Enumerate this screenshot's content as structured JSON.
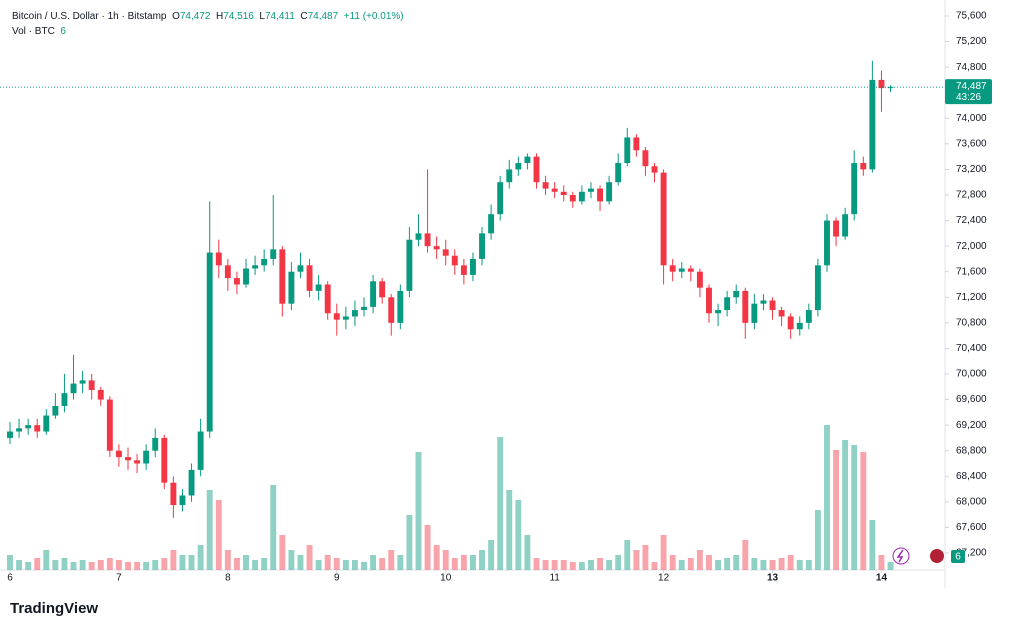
{
  "header": {
    "symbol": "Bitcoin / U.S. Dollar · 1h · Bitstamp",
    "o_label": "O",
    "o": "74,472",
    "h_label": "H",
    "h": "74,516",
    "l_label": "L",
    "l": "74,411",
    "c_label": "C",
    "c": "74,487",
    "change": "+11 (+0.01%)",
    "vol_label": "Vol · BTC",
    "vol": "6"
  },
  "brand": "TradingView",
  "badge": "6",
  "chart_data": {
    "type": "candlestick",
    "up_color": "#089981",
    "down_color": "#f23645",
    "grid": false,
    "last_price_label": "74,487",
    "countdown": "43:26",
    "xlim": [
      -2.2,
      206
    ],
    "xticks": [
      {
        "value": 0,
        "label": "6"
      },
      {
        "value": 24,
        "label": "7"
      },
      {
        "value": 48,
        "label": "8"
      },
      {
        "value": 72,
        "label": "9"
      },
      {
        "value": 96,
        "label": "10"
      },
      {
        "value": 120,
        "label": "11"
      },
      {
        "value": 144,
        "label": "12"
      },
      {
        "value": 168,
        "label": "13"
      },
      {
        "value": 192,
        "label": "14"
      }
    ],
    "ylim": [
      66934,
      75850
    ],
    "yticks": [
      {
        "value": 67200,
        "label": "67,200"
      },
      {
        "value": 67600,
        "label": "67,600"
      },
      {
        "value": 68000,
        "label": "68,000"
      },
      {
        "value": 68400,
        "label": "68,400"
      },
      {
        "value": 68800,
        "label": "68,800"
      },
      {
        "value": 69200,
        "label": "69,200"
      },
      {
        "value": 69600,
        "label": "69,600"
      },
      {
        "value": 70000,
        "label": "70,000"
      },
      {
        "value": 70400,
        "label": "70,400"
      },
      {
        "value": 70800,
        "label": "70,800"
      },
      {
        "value": 71200,
        "label": "71,200"
      },
      {
        "value": 71600,
        "label": "71,600"
      },
      {
        "value": 72000,
        "label": "72,000"
      },
      {
        "value": 72400,
        "label": "72,400"
      },
      {
        "value": 72800,
        "label": "72,800"
      },
      {
        "value": 73200,
        "label": "73,200"
      },
      {
        "value": 73600,
        "label": "73,600"
      },
      {
        "value": 74000,
        "label": "74,000"
      },
      {
        "value": 74400,
        "label": "74,400"
      },
      {
        "value": 74800,
        "label": "74,800"
      },
      {
        "value": 75200,
        "label": "75,200"
      },
      {
        "value": 75600,
        "label": "75,600"
      }
    ],
    "x": [
      0,
      2,
      4,
      6,
      8,
      10,
      12,
      14,
      16,
      18,
      20,
      22,
      24,
      26,
      28,
      30,
      32,
      34,
      36,
      38,
      40,
      42,
      44,
      46,
      48,
      50,
      52,
      54,
      56,
      58,
      60,
      62,
      64,
      66,
      68,
      70,
      72,
      74,
      76,
      78,
      80,
      82,
      84,
      86,
      88,
      90,
      92,
      94,
      96,
      98,
      100,
      102,
      104,
      106,
      108,
      110,
      112,
      114,
      116,
      118,
      120,
      122,
      124,
      126,
      128,
      130,
      132,
      134,
      136,
      138,
      140,
      142,
      144,
      146,
      148,
      150,
      152,
      154,
      156,
      158,
      160,
      162,
      164,
      166,
      168,
      170,
      172,
      174,
      176,
      178,
      180,
      182,
      184,
      186,
      188,
      190,
      192,
      194
    ],
    "open": [
      69000,
      69100,
      69150,
      69200,
      69100,
      69350,
      69500,
      69700,
      69850,
      69900,
      69750,
      69600,
      68800,
      68700,
      68650,
      68600,
      68800,
      69000,
      68300,
      67950,
      68100,
      68500,
      69100,
      71900,
      71700,
      71500,
      71400,
      71650,
      71700,
      71800,
      71950,
      71100,
      71600,
      71700,
      71300,
      71400,
      70950,
      70850,
      70900,
      71000,
      71050,
      71450,
      71200,
      70800,
      71300,
      72100,
      72200,
      72000,
      71950,
      71850,
      71700,
      71550,
      71800,
      72200,
      72500,
      73000,
      73200,
      73300,
      73400,
      73000,
      72900,
      72850,
      72800,
      72700,
      72850,
      72900,
      72700,
      73000,
      73300,
      73700,
      73500,
      73250,
      73150,
      71700,
      71600,
      71650,
      71600,
      71350,
      70950,
      71000,
      71200,
      71300,
      70800,
      71100,
      71150,
      71000,
      70900,
      70700,
      70800,
      71000,
      71700,
      72400,
      72150,
      72500,
      73300,
      73200,
      74600,
      74472
    ],
    "high": [
      69250,
      69300,
      69300,
      69300,
      69450,
      69700,
      70000,
      70300,
      70050,
      70000,
      69800,
      69650,
      68900,
      68850,
      68750,
      68900,
      69150,
      69050,
      68400,
      68200,
      68600,
      69300,
      72700,
      72100,
      71800,
      71600,
      71800,
      71850,
      71950,
      72800,
      72000,
      71750,
      71900,
      71800,
      71550,
      71450,
      71100,
      71050,
      71150,
      71200,
      71550,
      71500,
      71250,
      71400,
      72300,
      72500,
      73200,
      72150,
      72100,
      71950,
      71800,
      71900,
      72300,
      72650,
      73100,
      73350,
      73400,
      73450,
      73450,
      73100,
      73000,
      72950,
      72850,
      72950,
      73000,
      72950,
      73100,
      73450,
      73850,
      73750,
      73550,
      73300,
      73200,
      71800,
      71750,
      71700,
      71650,
      71400,
      71100,
      71300,
      71400,
      71350,
      71250,
      71250,
      71200,
      71050,
      70950,
      70900,
      71100,
      71800,
      72500,
      72450,
      72600,
      73500,
      73400,
      74900,
      74750,
      74516
    ],
    "low": [
      68900,
      69000,
      69050,
      69000,
      69050,
      69300,
      69400,
      69600,
      69700,
      69600,
      69500,
      68700,
      68550,
      68500,
      68450,
      68500,
      68700,
      68200,
      67750,
      67850,
      68000,
      68400,
      69000,
      71500,
      71300,
      71250,
      71350,
      71550,
      71600,
      71700,
      70900,
      71000,
      71500,
      71200,
      71150,
      70850,
      70600,
      70700,
      70750,
      70900,
      70950,
      71100,
      70600,
      70700,
      71200,
      72000,
      71900,
      71800,
      71700,
      71550,
      71400,
      71450,
      71700,
      72100,
      72400,
      72900,
      73100,
      73200,
      72900,
      72800,
      72750,
      72700,
      72600,
      72650,
      72750,
      72550,
      72650,
      72950,
      73250,
      73400,
      73100,
      73000,
      71400,
      71450,
      71500,
      71450,
      71200,
      70800,
      70750,
      70900,
      71100,
      70550,
      70700,
      71000,
      70850,
      70750,
      70550,
      70600,
      70700,
      70900,
      71600,
      72000,
      72100,
      72400,
      73100,
      73150,
      74100,
      74411
    ],
    "close": [
      69100,
      69150,
      69200,
      69100,
      69350,
      69500,
      69700,
      69850,
      69900,
      69750,
      69600,
      68800,
      68700,
      68650,
      68600,
      68800,
      69000,
      68300,
      67950,
      68100,
      68500,
      69100,
      71900,
      71700,
      71500,
      71400,
      71650,
      71700,
      71800,
      71950,
      71100,
      71600,
      71700,
      71300,
      71400,
      70950,
      70850,
      70900,
      71000,
      71050,
      71450,
      71200,
      70800,
      71300,
      72100,
      72200,
      72000,
      71950,
      71850,
      71700,
      71550,
      71800,
      72200,
      72500,
      73000,
      73200,
      73300,
      73400,
      73000,
      72900,
      72850,
      72800,
      72700,
      72850,
      72900,
      72700,
      73000,
      73300,
      73700,
      73500,
      73250,
      73150,
      71700,
      71600,
      71650,
      71600,
      71350,
      70950,
      71000,
      71200,
      71300,
      70800,
      71100,
      71150,
      71000,
      70900,
      70700,
      70800,
      71000,
      71700,
      72400,
      72150,
      72500,
      73300,
      73200,
      74600,
      74472,
      74487
    ],
    "volume": [
      15,
      10,
      8,
      12,
      20,
      10,
      12,
      8,
      10,
      8,
      10,
      12,
      10,
      8,
      8,
      8,
      10,
      12,
      20,
      15,
      15,
      25,
      80,
      70,
      20,
      12,
      15,
      10,
      12,
      85,
      35,
      20,
      15,
      25,
      10,
      15,
      12,
      10,
      10,
      8,
      15,
      12,
      20,
      15,
      55,
      118,
      45,
      25,
      20,
      12,
      15,
      15,
      20,
      30,
      133,
      80,
      70,
      35,
      12,
      10,
      10,
      10,
      8,
      8,
      10,
      12,
      10,
      15,
      30,
      20,
      25,
      8,
      35,
      15,
      10,
      12,
      20,
      15,
      10,
      12,
      15,
      30,
      12,
      10,
      10,
      12,
      15,
      10,
      10,
      60,
      145,
      120,
      130,
      125,
      118,
      50,
      15,
      8
    ]
  }
}
